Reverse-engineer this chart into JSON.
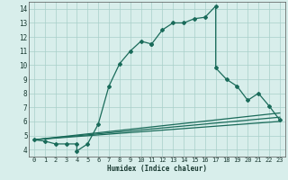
{
  "xlabel": "Humidex (Indice chaleur)",
  "xlim": [
    -0.5,
    23.5
  ],
  "ylim": [
    3.5,
    14.5
  ],
  "xticks": [
    0,
    1,
    2,
    3,
    4,
    5,
    6,
    7,
    8,
    9,
    10,
    11,
    12,
    13,
    14,
    15,
    16,
    17,
    18,
    19,
    20,
    21,
    22,
    23
  ],
  "yticks": [
    4,
    5,
    6,
    7,
    8,
    9,
    10,
    11,
    12,
    13,
    14
  ],
  "line_color": "#1a6b5a",
  "bg_color": "#d8eeeb",
  "grid_color": "#a8cfc9",
  "series": [
    {
      "x": [
        0,
        1,
        2,
        3,
        4,
        4,
        5,
        6,
        7,
        8,
        9,
        10,
        11,
        11,
        12,
        13,
        14,
        15,
        16,
        17,
        17,
        18,
        19,
        20,
        21,
        22,
        23
      ],
      "y": [
        4.7,
        4.6,
        4.4,
        4.4,
        4.4,
        3.9,
        4.4,
        5.8,
        8.5,
        10.1,
        11.0,
        11.7,
        11.5,
        11.5,
        12.5,
        13.0,
        13.0,
        13.3,
        13.4,
        14.2,
        9.8,
        9.0,
        8.5,
        7.5,
        8.0,
        7.1,
        6.1
      ],
      "marker": "D",
      "markersize": 2.0,
      "linewidth": 0.9
    },
    {
      "x": [
        0,
        23
      ],
      "y": [
        4.7,
        6.0
      ],
      "marker": null,
      "linewidth": 0.9
    },
    {
      "x": [
        0,
        23
      ],
      "y": [
        4.7,
        6.3
      ],
      "marker": null,
      "linewidth": 0.9
    },
    {
      "x": [
        0,
        23
      ],
      "y": [
        4.7,
        6.6
      ],
      "marker": null,
      "linewidth": 0.9
    }
  ]
}
